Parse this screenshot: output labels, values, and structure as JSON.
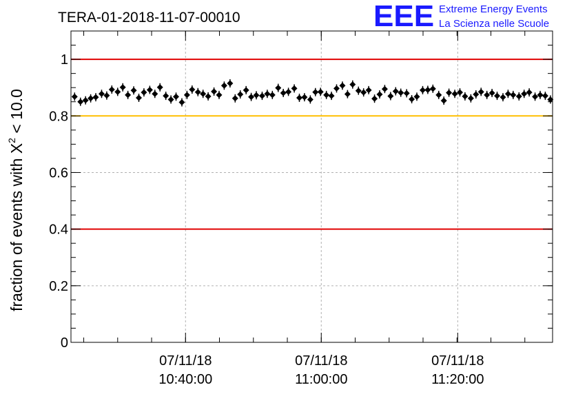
{
  "chart_data": {
    "type": "scatter",
    "title": "TERA-01-2018-11-07-00010",
    "ylabel_main": "fraction of events with ",
    "ylabel_chi": "X",
    "ylabel_sup": "2",
    "ylabel_tail": " < 10.0",
    "xlabel": "",
    "ylim": [
      0,
      1.1
    ],
    "yticks": [
      {
        "value": 0,
        "label": "0"
      },
      {
        "value": 0.2,
        "label": "0.2"
      },
      {
        "value": 0.4,
        "label": "0.4"
      },
      {
        "value": 0.6,
        "label": "0.6"
      },
      {
        "value": 0.8,
        "label": "0.8"
      },
      {
        "value": 1,
        "label": "1"
      }
    ],
    "xlim_minutes": [
      0,
      66
    ],
    "xticks": [
      {
        "value": 15.7,
        "date": "07/11/18",
        "time": "10:40:00"
      },
      {
        "value": 34.3,
        "date": "07/11/18",
        "time": "11:00:00"
      },
      {
        "value": 53.0,
        "date": "07/11/18",
        "time": "11:20:00"
      }
    ],
    "reference_lines": [
      {
        "value": 1.0,
        "color": "#e00000"
      },
      {
        "value": 0.8,
        "color": "#ffbf00"
      },
      {
        "value": 0.4,
        "color": "#e00000"
      }
    ],
    "series": [
      {
        "name": "fraction",
        "marker_color": "#000000",
        "x": [
          0.5,
          1.3,
          2.0,
          2.7,
          3.4,
          4.2,
          4.9,
          5.6,
          6.4,
          7.1,
          7.8,
          8.6,
          9.3,
          10.0,
          10.8,
          11.5,
          12.2,
          13.0,
          13.7,
          14.4,
          15.2,
          15.9,
          16.6,
          17.4,
          18.1,
          18.8,
          19.6,
          20.3,
          21.0,
          21.8,
          22.5,
          23.2,
          24.0,
          24.7,
          25.4,
          26.2,
          26.9,
          27.6,
          28.4,
          29.1,
          29.8,
          30.6,
          31.3,
          32.0,
          32.8,
          33.5,
          34.2,
          35.0,
          35.7,
          36.4,
          37.2,
          37.9,
          38.6,
          39.4,
          40.1,
          40.8,
          41.6,
          42.3,
          43.0,
          43.8,
          44.5,
          45.2,
          46.0,
          46.7,
          47.4,
          48.2,
          48.9,
          49.6,
          50.4,
          51.1,
          51.8,
          52.6,
          53.3,
          54.0,
          54.8,
          55.5,
          56.2,
          57.0,
          57.7,
          58.4,
          59.2,
          59.9,
          60.6,
          61.4,
          62.1,
          62.8,
          63.6,
          64.3,
          65.0,
          65.7
        ],
        "y": [
          0.868,
          0.85,
          0.855,
          0.862,
          0.866,
          0.878,
          0.872,
          0.893,
          0.885,
          0.901,
          0.874,
          0.89,
          0.864,
          0.883,
          0.892,
          0.878,
          0.901,
          0.871,
          0.858,
          0.868,
          0.848,
          0.874,
          0.893,
          0.884,
          0.878,
          0.869,
          0.886,
          0.874,
          0.907,
          0.915,
          0.862,
          0.876,
          0.891,
          0.867,
          0.873,
          0.871,
          0.878,
          0.874,
          0.899,
          0.881,
          0.885,
          0.897,
          0.864,
          0.866,
          0.858,
          0.884,
          0.885,
          0.874,
          0.871,
          0.897,
          0.907,
          0.877,
          0.911,
          0.889,
          0.883,
          0.891,
          0.861,
          0.876,
          0.895,
          0.87,
          0.887,
          0.882,
          0.88,
          0.859,
          0.868,
          0.891,
          0.892,
          0.896,
          0.874,
          0.854,
          0.882,
          0.878,
          0.883,
          0.869,
          0.862,
          0.876,
          0.885,
          0.874,
          0.881,
          0.871,
          0.866,
          0.878,
          0.874,
          0.869,
          0.878,
          0.883,
          0.868,
          0.874,
          0.871,
          0.858
        ]
      }
    ]
  },
  "logo": {
    "letters": "EEE",
    "line1": "Extreme Energy Events",
    "line2": "La Scienza nelle Scuole"
  }
}
